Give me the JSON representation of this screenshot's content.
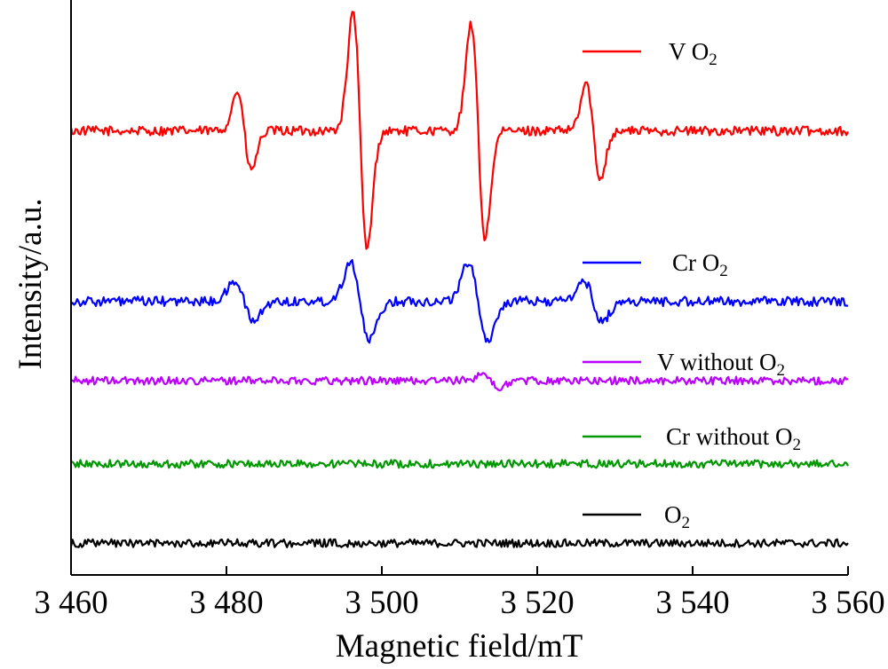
{
  "chart_data": {
    "type": "line",
    "xlabel": "Magnetic field/mT",
    "ylabel": "Intensity/a.u.",
    "xlim": [
      3460,
      3560
    ],
    "x_ticks": [
      3460,
      3480,
      3500,
      3520,
      3540,
      3560
    ],
    "x_tick_labels": [
      "3 460",
      "3 480",
      "3 500",
      "3 520",
      "3 540",
      "3 560"
    ],
    "y_ticks_shown": false,
    "grid": false,
    "legend_position": "right",
    "series": [
      {
        "key": "v_o2",
        "name": "V O",
        "name_sub": "2",
        "color": "#ff0000",
        "baseline": 0.77,
        "noise": 0.012,
        "peaks": [
          {
            "x": 3482.3,
            "amp": 0.1,
            "width": 0.9
          },
          {
            "x": 3497.2,
            "amp": 0.3,
            "width": 0.9
          },
          {
            "x": 3512.4,
            "amp": 0.27,
            "width": 0.9
          },
          {
            "x": 3527.2,
            "amp": 0.12,
            "width": 0.9
          }
        ]
      },
      {
        "key": "cr_o2",
        "name": "Cr O",
        "name_sub": "2",
        "color": "#0000ff",
        "baseline": 0.34,
        "noise": 0.012,
        "peaks": [
          {
            "x": 3482.3,
            "amp": 0.05,
            "width": 1.2
          },
          {
            "x": 3497.2,
            "amp": 0.1,
            "width": 1.2
          },
          {
            "x": 3512.4,
            "amp": 0.1,
            "width": 1.2
          },
          {
            "x": 3527.2,
            "amp": 0.05,
            "width": 1.2
          }
        ]
      },
      {
        "key": "v_no_o2",
        "name": "V without O",
        "name_sub": "2",
        "color": "#bb00ff",
        "baseline": 0.14,
        "noise": 0.01,
        "peaks": [
          {
            "x": 3514.0,
            "amp": 0.02,
            "width": 1.0
          }
        ]
      },
      {
        "key": "cr_no_o2",
        "name": "Cr without O",
        "name_sub": "2",
        "color": "#009900",
        "baseline": -0.07,
        "noise": 0.01,
        "peaks": []
      },
      {
        "key": "o2",
        "name": "O",
        "name_sub": "2",
        "color": "#000000",
        "baseline": -0.27,
        "noise": 0.01,
        "peaks": []
      }
    ],
    "ylim": [
      -0.35,
      1.1
    ]
  }
}
